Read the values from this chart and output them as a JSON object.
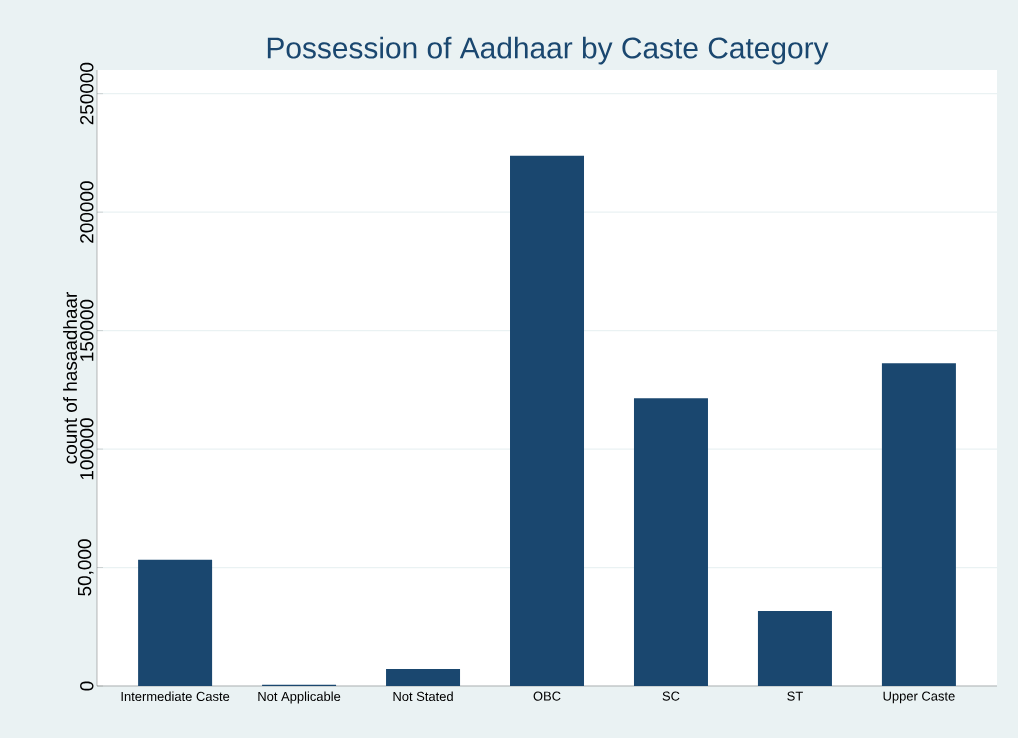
{
  "chart_data": {
    "type": "bar",
    "title": "Possession of Aadhaar by Caste Category",
    "ylabel": "count of hasaadhaar",
    "categories": [
      "Intermediate Caste",
      "Not Applicable",
      "Not Stated",
      "OBC",
      "SC",
      "ST",
      "Upper Caste"
    ],
    "values": [
      53300,
      500,
      7200,
      223800,
      121400,
      31700,
      136200
    ],
    "color": "#1a476f",
    "ylim": [
      0,
      260000
    ],
    "yticks": [
      0,
      {
        "value": 50000,
        "label": "50,000"
      },
      100000,
      150000,
      200000,
      250000
    ],
    "grid": "y"
  }
}
